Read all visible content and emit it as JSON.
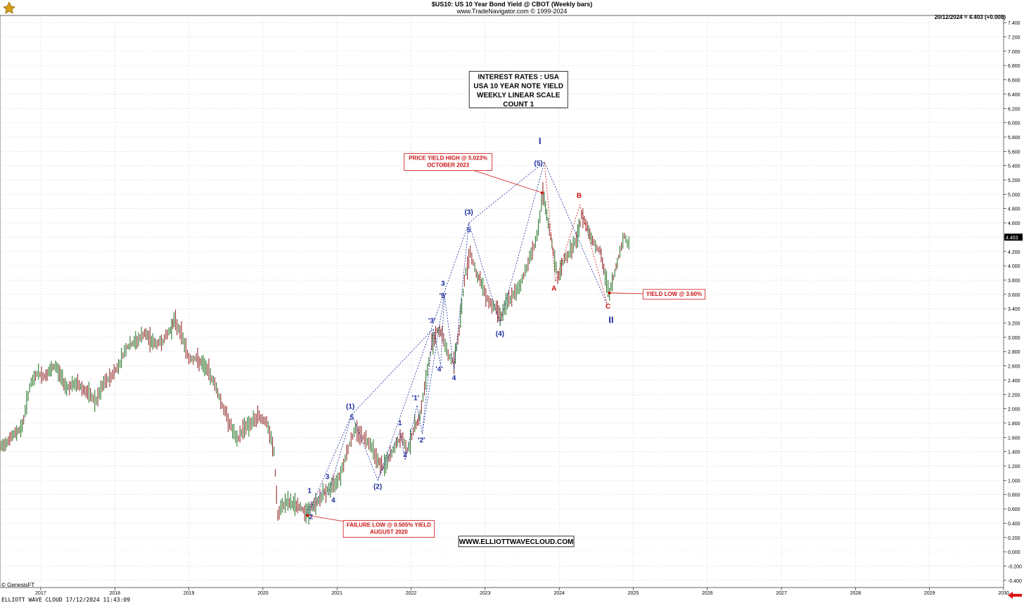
{
  "header": {
    "title": "$US10:  US 10 Year Bond Yield @ CBOT  (Weekly bars)",
    "subtitle": "www.TradeNavigator.com © 1999-2024",
    "last_value": "20/12/2024 = 4.403 (+0.008)"
  },
  "footer": {
    "genesis": "© GenesisFT",
    "stamp": "ELLIOTT WAVE CLOUD   17/12/2024 11:43:09"
  },
  "colors": {
    "grid": "#b8b8b8",
    "up_bar": "#1a6b1a",
    "down_bar": "#8b1a1a",
    "wave_blue": "#1a2a9c",
    "annotation_red": "#cc1111"
  },
  "icons": [
    "trading-logo-icon",
    "left-arrow-icon"
  ],
  "chart_data": {
    "type": "line",
    "y_scale": "linear",
    "ylim": [
      -0.5,
      7.5
    ],
    "x_range_years": [
      2016.45,
      2030.0
    ],
    "grid": true,
    "y_ticks": [
      "7.400",
      "7.200",
      "7.000",
      "6.800",
      "6.600",
      "6.400",
      "6.200",
      "6.000",
      "5.800",
      "5.600",
      "5.400",
      "5.200",
      "5.000",
      "4.800",
      "4.600",
      "4.400",
      "4.200",
      "4.000",
      "3.800",
      "3.600",
      "3.400",
      "3.200",
      "3.000",
      "2.800",
      "2.600",
      "2.400",
      "2.200",
      "2.000",
      "1.800",
      "1.600",
      "1.400",
      "1.200",
      "1.000",
      "0.800",
      "0.600",
      "0.400",
      "0.200",
      "0.000",
      "-0.200",
      "-0.400"
    ],
    "x_ticks": [
      "2017",
      "2018",
      "2019",
      "2020",
      "2021",
      "2022",
      "2023",
      "2024",
      "2025",
      "2026",
      "2027",
      "2028",
      "2029",
      "2030"
    ],
    "last_price_label": "4.403",
    "series": [
      {
        "values": [
          [
            2016.45,
            1.45
          ],
          [
            2016.6,
            1.6
          ],
          [
            2016.75,
            1.75
          ],
          [
            2016.85,
            2.3
          ],
          [
            2016.95,
            2.5
          ],
          [
            2017.05,
            2.45
          ],
          [
            2017.2,
            2.6
          ],
          [
            2017.35,
            2.3
          ],
          [
            2017.5,
            2.35
          ],
          [
            2017.65,
            2.2
          ],
          [
            2017.75,
            2.1
          ],
          [
            2017.85,
            2.35
          ],
          [
            2017.95,
            2.45
          ],
          [
            2018.05,
            2.6
          ],
          [
            2018.15,
            2.85
          ],
          [
            2018.3,
            2.95
          ],
          [
            2018.4,
            3.05
          ],
          [
            2018.55,
            2.9
          ],
          [
            2018.65,
            2.95
          ],
          [
            2018.75,
            3.1
          ],
          [
            2018.8,
            3.24
          ],
          [
            2018.9,
            3.05
          ],
          [
            2019.0,
            2.7
          ],
          [
            2019.1,
            2.7
          ],
          [
            2019.25,
            2.55
          ],
          [
            2019.35,
            2.35
          ],
          [
            2019.45,
            2.05
          ],
          [
            2019.55,
            1.8
          ],
          [
            2019.65,
            1.55
          ],
          [
            2019.75,
            1.75
          ],
          [
            2019.85,
            1.8
          ],
          [
            2019.95,
            1.9
          ],
          [
            2020.05,
            1.8
          ],
          [
            2020.15,
            1.4
          ],
          [
            2020.2,
            0.5
          ],
          [
            2020.3,
            0.7
          ],
          [
            2020.45,
            0.65
          ],
          [
            2020.6,
            0.55
          ],
          [
            2020.75,
            0.72
          ],
          [
            2020.85,
            0.85
          ],
          [
            2020.95,
            0.92
          ],
          [
            2021.05,
            1.1
          ],
          [
            2021.15,
            1.45
          ],
          [
            2021.25,
            1.72
          ],
          [
            2021.35,
            1.6
          ],
          [
            2021.45,
            1.52
          ],
          [
            2021.55,
            1.28
          ],
          [
            2021.62,
            1.18
          ],
          [
            2021.7,
            1.3
          ],
          [
            2021.8,
            1.5
          ],
          [
            2021.87,
            1.6
          ],
          [
            2021.95,
            1.42
          ],
          [
            2022.05,
            1.75
          ],
          [
            2022.12,
            1.9
          ],
          [
            2022.2,
            2.4
          ],
          [
            2022.28,
            2.9
          ],
          [
            2022.35,
            3.1
          ],
          [
            2022.42,
            3.05
          ],
          [
            2022.5,
            2.75
          ],
          [
            2022.58,
            2.65
          ],
          [
            2022.65,
            3.1
          ],
          [
            2022.72,
            3.8
          ],
          [
            2022.8,
            4.2
          ],
          [
            2022.88,
            3.9
          ],
          [
            2022.95,
            3.75
          ],
          [
            2023.05,
            3.5
          ],
          [
            2023.15,
            3.4
          ],
          [
            2023.22,
            3.3
          ],
          [
            2023.3,
            3.5
          ],
          [
            2023.4,
            3.6
          ],
          [
            2023.5,
            3.8
          ],
          [
            2023.6,
            4.1
          ],
          [
            2023.7,
            4.4
          ],
          [
            2023.78,
            5.0
          ],
          [
            2023.85,
            4.6
          ],
          [
            2023.92,
            4.2
          ],
          [
            2023.98,
            3.82
          ],
          [
            2024.05,
            4.05
          ],
          [
            2024.15,
            4.2
          ],
          [
            2024.25,
            4.4
          ],
          [
            2024.3,
            4.7
          ],
          [
            2024.38,
            4.55
          ],
          [
            2024.45,
            4.35
          ],
          [
            2024.55,
            4.2
          ],
          [
            2024.62,
            3.85
          ],
          [
            2024.68,
            3.62
          ],
          [
            2024.75,
            3.9
          ],
          [
            2024.82,
            4.2
          ],
          [
            2024.88,
            4.42
          ],
          [
            2024.92,
            4.3
          ],
          [
            2024.96,
            4.4
          ]
        ]
      }
    ],
    "wave_lines_blue": [
      {
        "name": "zigzag",
        "points": [
          [
            2020.58,
            0.51
          ],
          [
            2020.65,
            0.7
          ],
          [
            2020.68,
            0.62
          ],
          [
            2020.8,
            0.85
          ],
          [
            2020.88,
            0.8
          ],
          [
            2021.2,
            1.92
          ],
          [
            2021.55,
            1.0
          ],
          [
            2021.85,
            1.68
          ],
          [
            2021.92,
            1.28
          ],
          [
            2022.08,
            2.05
          ],
          [
            2022.15,
            1.65
          ],
          [
            2022.3,
            3.12
          ],
          [
            2022.4,
            2.6
          ],
          [
            2022.45,
            3.6
          ],
          [
            2022.58,
            2.55
          ],
          [
            2022.78,
            4.6
          ],
          [
            2023.2,
            3.2
          ],
          [
            2023.8,
            5.45
          ],
          [
            2024.65,
            3.45
          ]
        ]
      },
      {
        "name": "channel-1",
        "points": [
          [
            2020.6,
            0.51
          ],
          [
            2021.2,
            1.92
          ]
        ]
      },
      {
        "name": "channel-2",
        "points": [
          [
            2021.55,
            1.0
          ],
          [
            2022.78,
            4.6
          ]
        ]
      },
      {
        "name": "channel-3",
        "points": [
          [
            2021.2,
            1.92
          ],
          [
            2022.3,
            3.12
          ]
        ]
      },
      {
        "name": "channel-4",
        "points": [
          [
            2022.78,
            4.6
          ],
          [
            2023.8,
            5.45
          ]
        ]
      },
      {
        "name": "channel-5",
        "points": [
          [
            2022.15,
            1.65
          ],
          [
            2022.45,
            3.6
          ]
        ]
      }
    ],
    "wave_lines_red": [
      {
        "name": "abc",
        "points": [
          [
            2023.8,
            5.45
          ],
          [
            2023.95,
            3.78
          ],
          [
            2024.28,
            4.85
          ],
          [
            2024.65,
            3.45
          ]
        ]
      }
    ],
    "wave_labels_blue": [
      {
        "text": "I",
        "x": 2023.74,
        "y": 5.7,
        "size": 13
      },
      {
        "text": "(5)",
        "x": 2023.72,
        "y": 5.4,
        "size": 10
      },
      {
        "text": "(3)",
        "x": 2022.78,
        "y": 4.72,
        "size": 10
      },
      {
        "text": "5",
        "x": 2022.78,
        "y": 4.47,
        "size": 10
      },
      {
        "text": "(4)",
        "x": 2023.2,
        "y": 3.02,
        "size": 10
      },
      {
        "text": "II",
        "x": 2024.7,
        "y": 3.2,
        "size": 13
      },
      {
        "text": "3",
        "x": 2022.43,
        "y": 3.72,
        "size": 10
      },
      {
        "text": "'5'",
        "x": 2022.43,
        "y": 3.55,
        "size": 10
      },
      {
        "text": "'3'",
        "x": 2022.28,
        "y": 3.2,
        "size": 10
      },
      {
        "text": "'4'",
        "x": 2022.38,
        "y": 2.52,
        "size": 10
      },
      {
        "text": "4",
        "x": 2022.58,
        "y": 2.4,
        "size": 10
      },
      {
        "text": "'1'",
        "x": 2022.06,
        "y": 2.12,
        "size": 10
      },
      {
        "text": "'2'",
        "x": 2022.14,
        "y": 1.53,
        "size": 10
      },
      {
        "text": "1",
        "x": 2021.85,
        "y": 1.77,
        "size": 10
      },
      {
        "text": "2",
        "x": 2021.92,
        "y": 1.33,
        "size": 10
      },
      {
        "text": "(1)",
        "x": 2021.18,
        "y": 2.0,
        "size": 10
      },
      {
        "text": "5",
        "x": 2021.2,
        "y": 1.85,
        "size": 10
      },
      {
        "text": "(2)",
        "x": 2021.55,
        "y": 0.88,
        "size": 10
      },
      {
        "text": "1",
        "x": 2020.63,
        "y": 0.82,
        "size": 10
      },
      {
        "text": "3",
        "x": 2020.87,
        "y": 1.02,
        "size": 10
      },
      {
        "text": "4",
        "x": 2020.95,
        "y": 0.69,
        "size": 10
      },
      {
        "text": "2",
        "x": 2020.65,
        "y": 0.46,
        "size": 10
      }
    ],
    "wave_labels_red": [
      {
        "text": "B",
        "x": 2024.27,
        "y": 4.95,
        "size": 10
      },
      {
        "text": "A",
        "x": 2023.93,
        "y": 3.65,
        "size": 10
      },
      {
        "text": "C",
        "x": 2024.66,
        "y": 3.4,
        "size": 10
      }
    ],
    "title_box": {
      "lines": [
        "INTEREST RATES : USA",
        "USA 10 YEAR NOTE YIELD",
        "WEEKLY LINEAR SCALE",
        "COUNT 1"
      ],
      "x": 2023.45,
      "y": 6.72
    },
    "callouts": [
      {
        "lines": [
          "PRICE YIELD HIGH @ 5.023%",
          "OCTOBER 2023"
        ],
        "box_x": 2022.5,
        "box_y": 5.45,
        "target": [
          2023.77,
          5.02
        ]
      },
      {
        "lines": [
          "YIELD LOW @ 3.60%"
        ],
        "box_x": 2025.55,
        "box_y": 3.6,
        "target": [
          2024.68,
          3.62
        ]
      },
      {
        "lines": [
          "FAILURE LOW @ 0.505% YIELD",
          "AUGUST 2020"
        ],
        "box_x": 2021.7,
        "box_y": 0.32,
        "target": [
          2020.6,
          0.51
        ]
      }
    ],
    "url_box": {
      "text": "WWW.ELLIOTTWAVECLOUD.COM",
      "x": 2023.42,
      "y": 0.14
    }
  }
}
